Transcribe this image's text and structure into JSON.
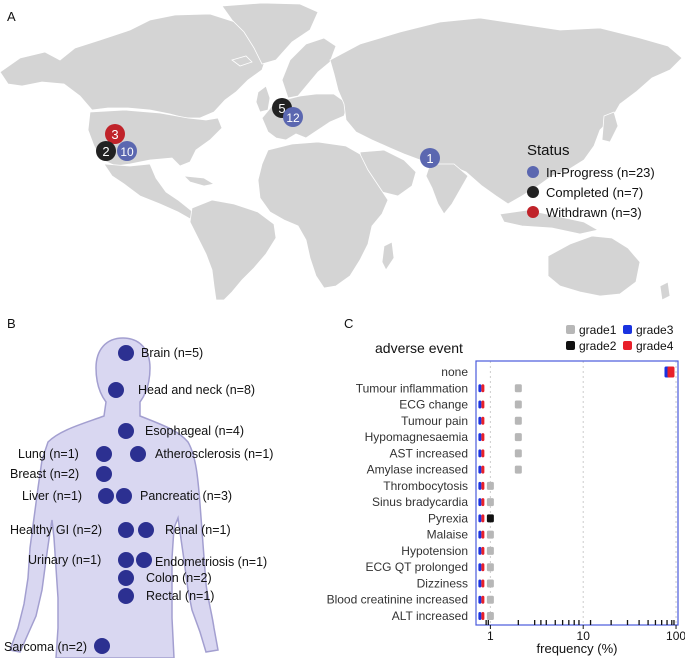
{
  "panels": {
    "a": "A",
    "b": "B",
    "c": "C"
  },
  "map": {
    "markers": [
      {
        "count": "3",
        "status": "withdrawn"
      },
      {
        "count": "2",
        "status": "completed"
      },
      {
        "count": "10",
        "status": "in_progress"
      },
      {
        "count": "5",
        "status": "completed"
      },
      {
        "count": "12",
        "status": "in_progress"
      },
      {
        "count": "1",
        "status": "in_progress"
      }
    ],
    "legend": {
      "title": "Status",
      "items": [
        {
          "label": "In-Progress (n=23)",
          "color": "#5b67b0"
        },
        {
          "label": "Completed (n=7)",
          "color": "#222222"
        },
        {
          "label": "Withdrawn (n=3)",
          "color": "#c0232a"
        }
      ]
    },
    "colors": {
      "land": "#d4d4d4",
      "withdrawn": "#c0232a",
      "completed": "#222222",
      "in_progress": "#5b67b0"
    }
  },
  "body": {
    "labels": [
      "Brain (n=5)",
      "Head and neck (n=8)",
      "Esophageal (n=4)",
      "Lung (n=1)",
      "Atherosclerosis (n=1)",
      "Breast (n=2)",
      "Liver (n=1)",
      "Pancreatic (n=3)",
      "Healthy GI (n=2)",
      "Renal (n=1)",
      "Urinary (n=1)",
      "Endometriosis (n=1)",
      "Colon (n=2)",
      "Rectal (n=1)",
      "Sarcoma (n=2)"
    ],
    "colors": {
      "silhouette": "#d9d7f1",
      "outline": "#a39fd0",
      "dot": "#2c3091"
    }
  },
  "chart_data": {
    "type": "scatter",
    "title": "adverse event",
    "xlabel": "frequency (%)",
    "xscale": "log",
    "xlim": [
      0.7,
      105
    ],
    "xticks": [
      "1",
      "10",
      "100"
    ],
    "legend": [
      {
        "label": "grade1",
        "color": "#b7b7b7"
      },
      {
        "label": "grade3",
        "color": "#1a33e0"
      },
      {
        "label": "grade2",
        "color": "#111111"
      },
      {
        "label": "grade4",
        "color": "#e8202a"
      }
    ],
    "categories": [
      "none",
      "Tumour inflammation",
      "ECG change",
      "Tumour pain",
      "Hypomagnesaemia",
      "AST increased",
      "Amylase increased",
      "Thrombocytosis",
      "Sinus bradycardia",
      "Pyrexia",
      "Malaise",
      "Hypotension",
      "ECG QT prolonged",
      "Dizziness",
      "Blood creatinine increased",
      "ALT increased"
    ],
    "series": [
      {
        "name": "grade1",
        "values": [
          null,
          2,
          2,
          2,
          2,
          2,
          2,
          1,
          1,
          null,
          1,
          1,
          1,
          1,
          1,
          1
        ]
      },
      {
        "name": "grade2",
        "values": [
          null,
          null,
          null,
          null,
          null,
          null,
          null,
          null,
          null,
          1,
          null,
          null,
          null,
          null,
          null,
          null
        ]
      },
      {
        "name": "grade3",
        "values": [
          85,
          0.8,
          0.8,
          0.8,
          0.8,
          0.8,
          0.8,
          0.8,
          0.8,
          0.8,
          0.8,
          0.8,
          0.8,
          0.8,
          0.8,
          0.8
        ]
      },
      {
        "name": "grade4",
        "values": [
          85,
          0.8,
          0.8,
          0.8,
          0.8,
          0.8,
          0.8,
          0.8,
          0.8,
          0.8,
          0.8,
          0.8,
          0.8,
          0.8,
          0.8,
          0.8
        ]
      }
    ],
    "rug": [
      0.9,
      0.95,
      2,
      3,
      3.5,
      4,
      5,
      6,
      7,
      8,
      9,
      12,
      20,
      30,
      40,
      50,
      60,
      70,
      80,
      90,
      95
    ]
  }
}
